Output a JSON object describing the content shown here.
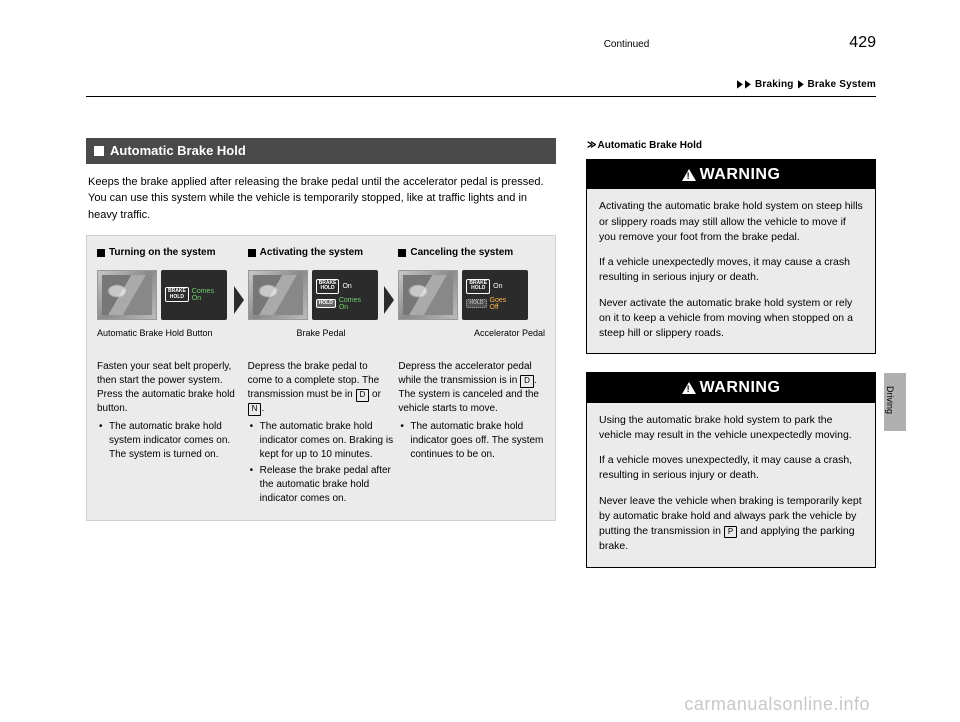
{
  "breadcrumb": {
    "s1": "Braking",
    "s2": "Brake System"
  },
  "section": {
    "title": "Automatic Brake Hold"
  },
  "intro": "Keeps the brake applied after releasing the brake pedal until the accelerator pedal is pressed. You can use this system while the vehicle is temporarily stopped, like at traffic lights and in heavy traffic.",
  "steps": {
    "s1": {
      "title": "Turning on the system",
      "ind1": "BRAKE\nHOLD",
      "ind1_label_a": "Comes",
      "ind1_label_b": "On",
      "caption": "Automatic Brake Hold Button",
      "body": "Fasten your seat belt properly, then start the power system. Press the automatic brake hold button.",
      "b1": "The automatic brake hold system indicator comes on. The system is turned on."
    },
    "s2": {
      "title": "Activating the system",
      "ind1": "BRAKE\nHOLD",
      "ind1_label": "On",
      "ind2": "HOLD",
      "ind2_label_a": "Comes",
      "ind2_label_b": "On",
      "caption": "Brake Pedal",
      "body_a": "Depress the brake pedal to come to a complete stop. The transmission must be in ",
      "body_b": " or ",
      "body_c": ".",
      "d": "D",
      "n": "N",
      "b1": "The automatic brake hold indicator comes on. Braking is kept for up to 10 minutes.",
      "b2": "Release the brake pedal after the automatic brake hold indicator comes on."
    },
    "s3": {
      "title": "Canceling the system",
      "ind1": "BRAKE\nHOLD",
      "ind1_label": "On",
      "ind2": "HOLD",
      "ind2_label_a": "Goes",
      "ind2_label_b": "Off",
      "caption": "Accelerator Pedal",
      "body_a": "Depress the accelerator pedal while the transmission is in ",
      "body_b": ". The system is canceled and the vehicle starts to move.",
      "d": "D",
      "b1": "The automatic brake hold indicator goes off. The system continues to be on."
    }
  },
  "right": {
    "note": "Automatic Brake Hold",
    "w1": {
      "head": "WARNING",
      "p1": "Activating the automatic brake hold system on steep hills or slippery roads may still allow the vehicle to move if you remove your foot from the brake pedal.",
      "p2": "If a vehicle unexpectedly moves, it may cause a crash resulting in serious injury or death.",
      "p3": "Never activate the automatic brake hold system or rely on it to keep a vehicle from moving when stopped on a steep hill or slippery roads."
    },
    "w2": {
      "head": "WARNING",
      "p1": "Using the automatic brake hold system to park the vehicle may result in the vehicle unexpectedly moving.",
      "p2": "If a vehicle moves unexpectedly, it may cause a crash, resulting in serious injury or death.",
      "p3a": "Never leave the vehicle when braking is temporarily kept by automatic brake hold and always park the vehicle by putting the transmission in ",
      "p3b": " and applying the parking brake.",
      "p": "P"
    }
  },
  "side": "Driving",
  "footer": {
    "cont": "Continued",
    "page": "429"
  },
  "watermark": "carmanualsonline.info",
  "colors": {
    "header_bg": "#4a4a4a",
    "box_bg": "#ebebeb",
    "dash_bg": "#2b2b2b",
    "tab_bg": "#b0b0b0",
    "wm": "#c8c8c8"
  }
}
